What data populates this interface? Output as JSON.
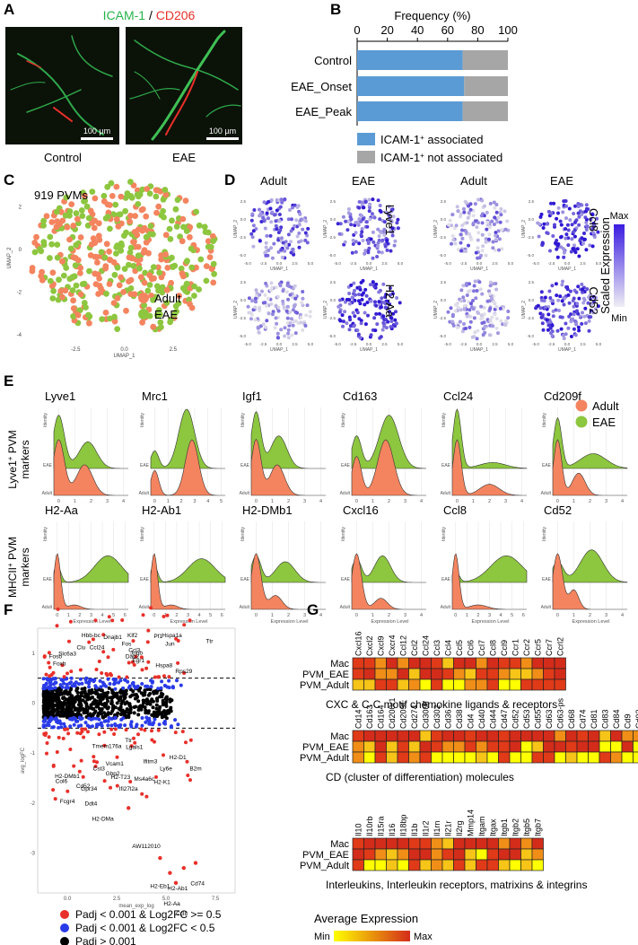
{
  "panels": {
    "A": {
      "letter": "A",
      "title_a": "ICAM-1",
      "title_sep": " / ",
      "title_b": "CD206",
      "images": [
        {
          "label": "Control",
          "scale": "100 µm"
        },
        {
          "label": "EAE",
          "scale": "100 µm"
        }
      ]
    },
    "B": {
      "letter": "B"
    },
    "C": {
      "letter": "C",
      "count_label": "919 PVMs",
      "xlabel": "UMAP_1",
      "ylabel": "UMAP_2"
    },
    "D": {
      "letter": "D",
      "col_labels": [
        "Adult",
        "EAE",
        "Adult",
        "EAE"
      ],
      "row_genes_left": [
        "Lyve1",
        "H2-Aa"
      ],
      "row_genes_right": [
        "Ccl8",
        "Cd52"
      ],
      "xlabel": "UMAP_1",
      "ylabel": "UMAP_2",
      "ticks_x": [
        "-5.0",
        "-2.5",
        "0.0",
        "2.5",
        "5.0"
      ],
      "ticks_y": [
        "2.5",
        "0.0",
        "-2.5",
        "-5.0"
      ],
      "colorbar": {
        "title": "Scaled Expression",
        "max": "Max",
        "min": "Min"
      }
    },
    "E": {
      "letter": "E",
      "row1_label_a": "Lyve1",
      "row1_label_sup": "+",
      "row1_label_b": " PVM",
      "row1_label_c": "markers",
      "row2_label_a": "MHCII",
      "row2_label_sup": "+",
      "row2_label_b": " PVM",
      "row2_label_c": "markers",
      "identity": "Identity",
      "cat_eae": "EAE",
      "cat_adult": "Adult",
      "xlabel": "Expression Level",
      "row1_genes": [
        "Lyve1",
        "Mrc1",
        "Igf1",
        "Cd163",
        "Ccl24",
        "Cd209f"
      ],
      "row2_genes": [
        "H2-Aa",
        "H2-Ab1",
        "H2-DMb1",
        "Cxcl16",
        "Ccl8",
        "Cd52"
      ],
      "legend": [
        {
          "label": "Adult",
          "color": "#F4845F"
        },
        {
          "label": "EAE",
          "color": "#8DC63F"
        }
      ]
    },
    "F": {
      "letter": "F",
      "xlabel": "mean_exp_log",
      "ylabel": "avg_logFC",
      "ticks_x": [
        "0.0",
        "2.5",
        "5.0",
        "7.5"
      ],
      "ticks_y": [
        "1",
        "0",
        "-1",
        "-2",
        "-3"
      ],
      "labels_up": [
        "Hbb-bc",
        "Dnajb1",
        "Klf2",
        "Fos",
        "Pf1",
        "Hspa1a",
        "Ttr",
        "Clu",
        "Ccl24",
        "Ccl3",
        "Fosb",
        "Jun",
        "Slc6a3",
        "Dab2",
        "Junb",
        "Egr1",
        "Hspa8",
        "Rps29",
        "Foxb"
      ],
      "labels_down": [
        "Tmem176a",
        "Ttr",
        "H2-D1",
        "B2m",
        "Lgals1",
        "Vcam1",
        "Ifitm3",
        "Ly6e",
        "Gbp2",
        "H2-T23",
        "Ms4a6c",
        "H2-K1",
        "Col6",
        "Cd52",
        "Gpr34",
        "Ifi27l2a",
        "Ddt4",
        "Fcgr4",
        "H2-DMa",
        "H2-DMb1",
        "AW112010",
        "H2-Eb1",
        "H2-Ab1",
        "Cd74",
        "H2-Aa",
        "Ccl8",
        "Cst3"
      ],
      "legend": [
        {
          "label": "Padj < 0.001 & Log2FC >= 0.5",
          "color": "#E8302A"
        },
        {
          "label": "Padj < 0.001 & Log2FC < 0.5",
          "color": "#2A3BE8"
        },
        {
          "label": "Padj > 0.001",
          "color": "#000000"
        }
      ]
    },
    "G": {
      "letter": "G",
      "rows": [
        "Mac",
        "PVM_EAE",
        "PVM_Adult"
      ],
      "groups": [
        {
          "title": "CXC & C-C motif chemokine ligands & receptors",
          "genes": [
            "Cxcl16",
            "Cxcl2",
            "Cxcl9",
            "Cxcr4",
            "Ccl12",
            "Ccl2",
            "Ccl24",
            "Ccl3",
            "Ccl4",
            "Ccl5",
            "Ccl6",
            "Ccl7",
            "Ccl8",
            "Ccl9",
            "Ccr1",
            "Ccr2",
            "Ccr5",
            "Ccr7",
            "Ccrl2"
          ]
        },
        {
          "title": "CD (cluster of differentiation) molecules",
          "genes": [
            "Cd14",
            "Cd163",
            "Cd164",
            "Cd200r1",
            "Cd209f",
            "Cd274",
            "Cd300lf",
            "Cd302",
            "Cd36",
            "Cd38",
            "Cd4",
            "Cd40",
            "Cd44",
            "Cd47",
            "Cd52",
            "Cd53",
            "Cd55",
            "Cd63",
            "Cd63-ps",
            "Cd68",
            "Cd74",
            "Cd81",
            "Cd83",
            "Cd84",
            "Cd9",
            "Cd93",
            "Cd97"
          ]
        },
        {
          "title": "Interleukins, Interleukin receptors, matrixins & integrins",
          "genes": [
            "Il10",
            "Il10rb",
            "Il15ra",
            "Il16",
            "Il18bp",
            "Il1b",
            "Il1r2",
            "Il1rn",
            "Il21r",
            "Il2rg",
            "Mmp14",
            "Itgam",
            "Itgax",
            "Itgb1",
            "Itgb2",
            "Itgb5",
            "Itgb7"
          ]
        }
      ],
      "legend": {
        "title": "Average Expression",
        "min": "Min",
        "max": "Max"
      }
    }
  },
  "chart_data": [
    {
      "type": "bar",
      "panel": "B",
      "title": "Frequency (%)",
      "categories": [
        "Control",
        "EAE_Onset",
        "EAE_Peak"
      ],
      "series": [
        {
          "name": "ICAM-1+ associated",
          "values": [
            70,
            71,
            70
          ],
          "color": "#5B9BD5"
        },
        {
          "name": "ICAM-1+ not associated",
          "values": [
            30,
            29,
            30
          ],
          "color": "#A6A6A6"
        }
      ],
      "xlim": [
        0,
        100
      ],
      "ticks": [
        "0",
        "20",
        "40",
        "60",
        "80",
        "100"
      ],
      "legend": [
        {
          "pre": "ICAM-1",
          "sup": "+",
          "post": " associated",
          "color": "#5B9BD5"
        },
        {
          "pre": "ICAM-1",
          "sup": "+",
          "post": " not associated",
          "color": "#A6A6A6"
        }
      ]
    },
    {
      "type": "scatter",
      "panel": "C",
      "title": "919 PVMs",
      "xlabel": "UMAP_1",
      "ylabel": "UMAP_2",
      "xlim": [
        -5,
        5
      ],
      "ylim": [
        -4.3,
        3.5
      ],
      "ticks_x": [
        "-2.5",
        "0.0",
        "2.5"
      ],
      "ticks_y": [
        "2",
        "0",
        "-2",
        "-4"
      ],
      "legend": [
        {
          "label": "Adult",
          "color": "#F4845F"
        },
        {
          "label": "EAE",
          "color": "#8DC63F"
        }
      ]
    }
  ]
}
